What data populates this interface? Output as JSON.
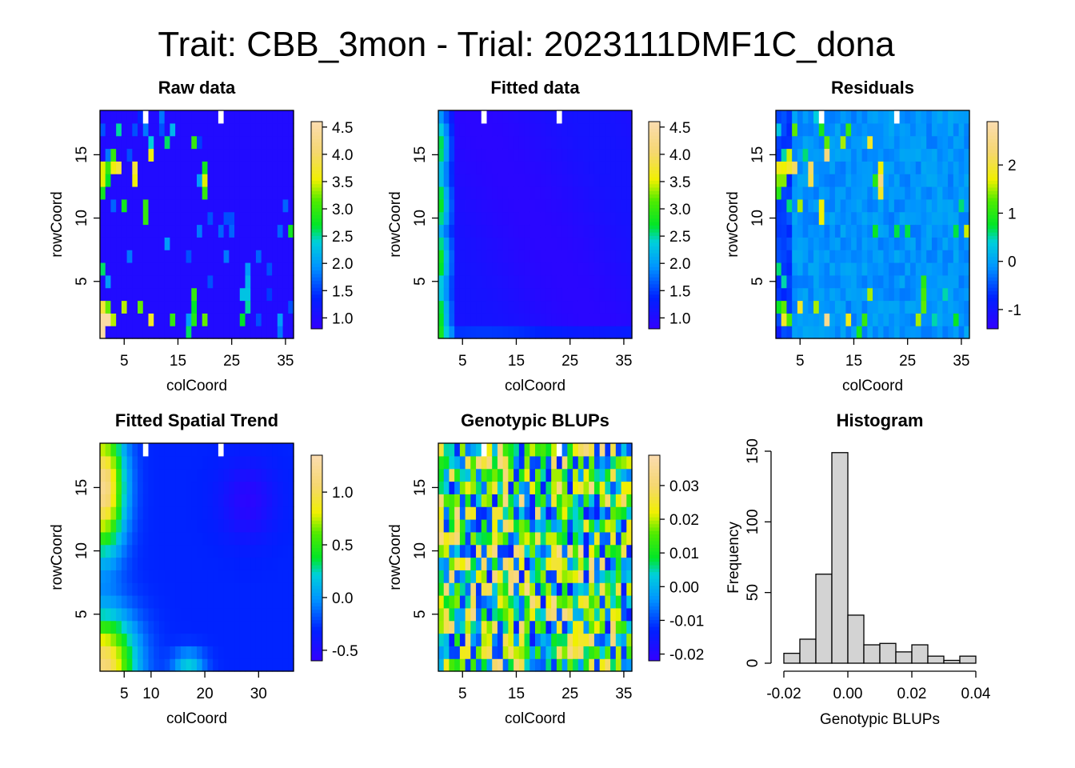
{
  "figure_title": "Trait: CBB_3mon - Trial: 2023111DMF1C_dona",
  "chart_data": [
    {
      "type": "heatmap",
      "title": "Raw data",
      "xlabel": "colCoord",
      "ylabel": "rowCoord",
      "xlim": [
        0.5,
        36.5
      ],
      "ylim": [
        0.5,
        18.5
      ],
      "x_ticks": [
        "5",
        "15",
        "25",
        "35"
      ],
      "y_ticks": [
        "5",
        "10",
        "15"
      ],
      "colorbar": {
        "range": [
          0.8,
          4.6
        ],
        "ticks": [
          "1.0",
          "1.5",
          "2.0",
          "2.5",
          "3.0",
          "3.5",
          "4.0",
          "4.5"
        ]
      },
      "background_value": 1.0,
      "missing_cells": [
        [
          9,
          18
        ],
        [
          23,
          18
        ]
      ],
      "cells": [
        [
          1,
          1,
          4.5
        ],
        [
          1,
          2,
          4.5
        ],
        [
          1,
          3,
          3.8
        ],
        [
          1,
          6,
          2.6
        ],
        [
          1,
          12,
          2.8
        ],
        [
          1,
          13,
          3.5
        ],
        [
          1,
          14,
          3.5
        ],
        [
          1,
          17,
          1.6
        ],
        [
          2,
          2,
          4.5
        ],
        [
          2,
          3,
          3.2
        ],
        [
          2,
          5,
          2.0
        ],
        [
          2,
          13,
          2.7
        ],
        [
          2,
          14,
          3.0
        ],
        [
          2,
          15,
          1.8
        ],
        [
          3,
          2,
          3.4
        ],
        [
          3,
          11,
          1.7
        ],
        [
          3,
          14,
          3.6
        ],
        [
          3,
          15,
          3.0
        ],
        [
          4,
          14,
          3.8
        ],
        [
          4,
          17,
          2.5
        ],
        [
          5,
          3,
          3.4
        ],
        [
          5,
          11,
          2.8
        ],
        [
          6,
          7,
          1.8
        ],
        [
          6,
          15,
          1.6
        ],
        [
          7,
          13,
          3.6
        ],
        [
          7,
          14,
          3.8
        ],
        [
          7,
          17,
          1.6
        ],
        [
          8,
          3,
          3.2
        ],
        [
          8,
          18,
          1.4
        ],
        [
          9,
          10,
          3.0
        ],
        [
          9,
          11,
          3.0
        ],
        [
          9,
          17,
          1.8
        ],
        [
          9,
          18,
          2.0
        ],
        [
          10,
          2,
          3.7
        ],
        [
          10,
          15,
          3.6
        ],
        [
          10,
          16,
          2.4
        ],
        [
          12,
          17,
          1.6
        ],
        [
          12,
          18,
          1.8
        ],
        [
          13,
          8,
          2.0
        ],
        [
          13,
          16,
          2.6
        ],
        [
          14,
          2,
          3.0
        ],
        [
          14,
          17,
          2.2
        ],
        [
          17,
          1,
          2.6
        ],
        [
          17,
          2,
          2.0
        ],
        [
          17,
          7,
          1.6
        ],
        [
          18,
          2,
          2.9
        ],
        [
          18,
          3,
          2.7
        ],
        [
          18,
          4,
          3.0
        ],
        [
          18,
          16,
          3.0
        ],
        [
          19,
          9,
          1.8
        ],
        [
          19,
          13,
          2.0
        ],
        [
          19,
          16,
          1.5
        ],
        [
          20,
          2,
          3.2
        ],
        [
          20,
          12,
          3.0
        ],
        [
          20,
          13,
          3.5
        ],
        [
          20,
          14,
          2.8
        ],
        [
          21,
          5,
          1.6
        ],
        [
          21,
          10,
          1.6
        ],
        [
          23,
          9,
          1.7
        ],
        [
          24,
          7,
          1.8
        ],
        [
          24,
          10,
          1.6
        ],
        [
          25,
          9,
          1.7
        ],
        [
          25,
          10,
          1.6
        ],
        [
          27,
          2,
          2.7
        ],
        [
          27,
          4,
          2.3
        ],
        [
          28,
          3,
          2.5
        ],
        [
          28,
          4,
          2.3
        ],
        [
          28,
          5,
          2.2
        ],
        [
          28,
          6,
          2.0
        ],
        [
          30,
          2,
          1.6
        ],
        [
          30,
          7,
          1.7
        ],
        [
          32,
          4,
          1.5
        ],
        [
          32,
          6,
          1.6
        ],
        [
          34,
          1,
          1.8
        ],
        [
          34,
          2,
          2.0
        ],
        [
          34,
          9,
          1.7
        ],
        [
          35,
          11,
          1.7
        ],
        [
          36,
          3,
          1.6
        ],
        [
          36,
          9,
          2.8
        ]
      ]
    },
    {
      "type": "heatmap",
      "title": "Fitted data",
      "xlabel": "colCoord",
      "ylabel": "rowCoord",
      "xlim": [
        0.5,
        36.5
      ],
      "ylim": [
        0.5,
        18.5
      ],
      "x_ticks": [
        "5",
        "15",
        "25",
        "35"
      ],
      "y_ticks": [
        "5",
        "10",
        "15"
      ],
      "colorbar": {
        "range": [
          0.8,
          4.6
        ],
        "ticks": [
          "1.0",
          "1.5",
          "2.0",
          "2.5",
          "3.0",
          "3.5",
          "4.0",
          "4.5"
        ]
      },
      "missing_cells": [
        [
          9,
          18
        ],
        [
          23,
          18
        ]
      ],
      "field_description": "smooth surface: about 2.6 at left edge columns 1-2, about 1.0-1.2 in the interior, about 1.4 along bottom row"
    },
    {
      "type": "heatmap",
      "title": "Residuals",
      "xlabel": "colCoord",
      "ylabel": "rowCoord",
      "xlim": [
        0.5,
        36.5
      ],
      "ylim": [
        0.5,
        18.5
      ],
      "x_ticks": [
        "5",
        "15",
        "25",
        "35"
      ],
      "y_ticks": [
        "5",
        "10",
        "15"
      ],
      "colorbar": {
        "range": [
          -1.4,
          2.9
        ],
        "ticks": [
          "-1",
          "0",
          "1",
          "2"
        ]
      },
      "missing_cells": [
        [
          9,
          18
        ],
        [
          23,
          18
        ]
      ],
      "cells": [
        [
          1,
          1,
          -0.9
        ],
        [
          1,
          2,
          -0.5
        ],
        [
          1,
          3,
          0.8
        ],
        [
          1,
          6,
          0.6
        ],
        [
          1,
          12,
          1.0
        ],
        [
          1,
          13,
          1.4
        ],
        [
          1,
          14,
          1.8
        ],
        [
          1,
          17,
          0.3
        ],
        [
          2,
          2,
          1.9
        ],
        [
          2,
          3,
          1.3
        ],
        [
          2,
          5,
          0.5
        ],
        [
          2,
          13,
          1.4
        ],
        [
          2,
          14,
          1.7
        ],
        [
          2,
          15,
          0.5
        ],
        [
          3,
          2,
          1.2
        ],
        [
          3,
          11,
          0.6
        ],
        [
          3,
          14,
          1.9
        ],
        [
          3,
          15,
          1.6
        ],
        [
          4,
          14,
          2.2
        ],
        [
          4,
          17,
          1.3
        ],
        [
          5,
          3,
          1.9
        ],
        [
          5,
          11,
          1.5
        ],
        [
          6,
          15,
          0.6
        ],
        [
          7,
          13,
          2.1
        ],
        [
          7,
          14,
          2.2
        ],
        [
          8,
          3,
          1.5
        ],
        [
          8,
          18,
          0.4
        ],
        [
          9,
          10,
          1.7
        ],
        [
          9,
          11,
          1.7
        ],
        [
          9,
          17,
          0.9
        ],
        [
          10,
          2,
          2.6
        ],
        [
          10,
          15,
          2.4
        ],
        [
          10,
          16,
          1.3
        ],
        [
          13,
          16,
          1.5
        ],
        [
          14,
          2,
          1.8
        ],
        [
          14,
          17,
          1.1
        ],
        [
          16,
          1,
          0.9
        ],
        [
          17,
          2,
          1.1
        ],
        [
          18,
          16,
          1.9
        ],
        [
          18,
          4,
          1.5
        ],
        [
          19,
          9,
          0.8
        ],
        [
          19,
          13,
          1.0
        ],
        [
          20,
          12,
          1.9
        ],
        [
          20,
          13,
          2.4
        ],
        [
          20,
          14,
          1.7
        ],
        [
          23,
          9,
          0.7
        ],
        [
          25,
          9,
          0.7
        ],
        [
          27,
          2,
          1.5
        ],
        [
          28,
          3,
          1.3
        ],
        [
          28,
          4,
          1.2
        ],
        [
          28,
          5,
          1.0
        ],
        [
          30,
          2,
          0.5
        ],
        [
          32,
          4,
          0.5
        ],
        [
          34,
          2,
          0.8
        ],
        [
          34,
          9,
          0.7
        ],
        [
          35,
          11,
          0.6
        ],
        [
          36,
          9,
          1.6
        ]
      ],
      "field_description": "mostly values between -0.3 and 0.3 with negative (-1 to -0.5) values near the left edge"
    },
    {
      "type": "heatmap",
      "title": "Fitted Spatial Trend",
      "xlabel": "colCoord",
      "ylabel": "rowCoord",
      "xlim": [
        0.5,
        36.5
      ],
      "ylim": [
        0.5,
        18.5
      ],
      "x_ticks": [
        "5",
        "10",
        "20",
        "30"
      ],
      "y_ticks": [
        "5",
        "10",
        "15"
      ],
      "colorbar": {
        "range": [
          -0.6,
          1.35
        ],
        "ticks": [
          "-0.5",
          "0.0",
          "0.5",
          "1.0"
        ]
      },
      "missing_cells": [
        [
          9,
          18
        ],
        [
          23,
          18
        ]
      ],
      "field_description": "high (about 1.2) at upper-left and lower-left corners, around -0.3 in the interior, lowest (about -0.55) near col 28 row 14"
    },
    {
      "type": "heatmap",
      "title": "Genotypic BLUPs",
      "xlabel": "colCoord",
      "ylabel": "rowCoord",
      "xlim": [
        0.5,
        36.5
      ],
      "ylim": [
        0.5,
        18.5
      ],
      "x_ticks": [
        "5",
        "15",
        "25",
        "35"
      ],
      "y_ticks": [
        "5",
        "10",
        "15"
      ],
      "colorbar": {
        "range": [
          -0.022,
          0.039
        ],
        "ticks": [
          "-0.02",
          "-0.01",
          "0.00",
          "0.01",
          "0.02",
          "0.03"
        ]
      },
      "missing_cells": [
        [
          9,
          18
        ],
        [
          23,
          18
        ]
      ],
      "field_description": "noisy field, values mostly between -0.015 and 0.035"
    },
    {
      "type": "bar",
      "title": "Histogram",
      "xlabel": "Genotypic BLUPs",
      "ylabel": "Frequency",
      "bin_edges": [
        -0.02,
        -0.015,
        -0.01,
        -0.005,
        0.0,
        0.005,
        0.01,
        0.015,
        0.02,
        0.025,
        0.03,
        0.035,
        0.04
      ],
      "values": [
        7,
        17,
        63,
        149,
        34,
        13,
        14,
        8,
        13,
        5,
        2,
        5
      ],
      "xlim": [
        -0.02,
        0.04
      ],
      "ylim": [
        0,
        150
      ],
      "x_ticks": [
        "-0.02",
        "0.00",
        "0.02",
        "0.04"
      ],
      "y_ticks": [
        "0",
        "50",
        "100",
        "150"
      ]
    }
  ]
}
